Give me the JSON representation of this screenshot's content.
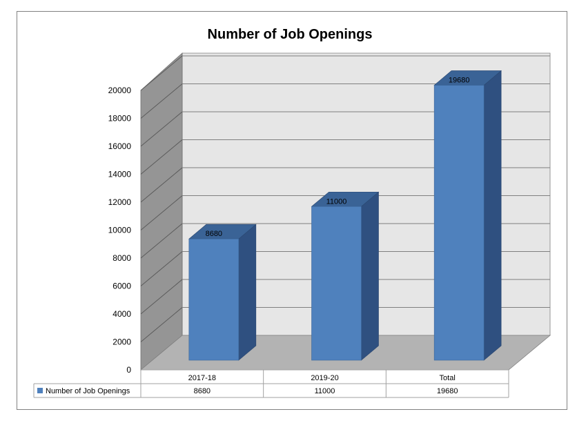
{
  "chart_data": {
    "type": "bar",
    "title": "Number of Job Openings",
    "categories": [
      "2017-18",
      "2019-20",
      "Total"
    ],
    "series": [
      {
        "name": "Number of Job Openings",
        "values": [
          8680,
          11000,
          19680
        ]
      }
    ],
    "ylim": [
      0,
      20000
    ],
    "yticks": [
      0,
      2000,
      4000,
      6000,
      8000,
      10000,
      12000,
      14000,
      16000,
      18000,
      20000
    ],
    "data_labels": [
      "8680",
      "11000",
      "19680"
    ],
    "grid": true,
    "three_d": true,
    "data_table": true,
    "colors": {
      "bar_front": "#4f81bd",
      "bar_side": "#2f5080",
      "bar_top": "#3a6396",
      "back_wall": "#e6e6e6",
      "side_wall": "#959595",
      "floor": "#b3b3b3"
    }
  }
}
